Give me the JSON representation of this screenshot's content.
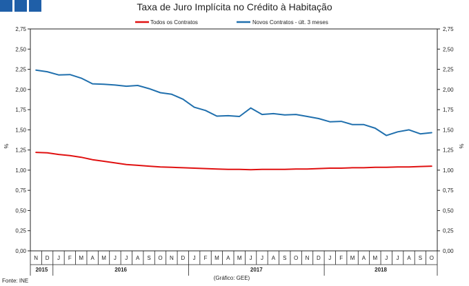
{
  "chart_data": {
    "type": "line",
    "title": "Taxa de Juro Implícita no Crédito à Habitação",
    "ylabel_left": "%",
    "ylabel_right": "%",
    "ylim": [
      0,
      2.75
    ],
    "yticks": [
      "0,00",
      "0,25",
      "0,50",
      "0,75",
      "1,00",
      "1,25",
      "1,50",
      "1,75",
      "2,00",
      "2,25",
      "2,50",
      "2,75"
    ],
    "categories": [
      "N",
      "D",
      "J",
      "F",
      "M",
      "A",
      "M",
      "J",
      "J",
      "A",
      "S",
      "O",
      "N",
      "D",
      "J",
      "F",
      "M",
      "A",
      "M",
      "J",
      "J",
      "A",
      "S",
      "O",
      "N",
      "D",
      "J",
      "F",
      "M",
      "A",
      "M",
      "J",
      "J",
      "A",
      "S",
      "O"
    ],
    "years": [
      {
        "label": "2015",
        "start": 0,
        "end": 1
      },
      {
        "label": "2016",
        "start": 2,
        "end": 13
      },
      {
        "label": "2017",
        "start": 14,
        "end": 25
      },
      {
        "label": "2018",
        "start": 26,
        "end": 35
      }
    ],
    "series": [
      {
        "name": "Todos os Contratos",
        "color": "#e01010",
        "values": [
          1.22,
          1.215,
          1.195,
          1.18,
          1.16,
          1.13,
          1.11,
          1.09,
          1.07,
          1.06,
          1.05,
          1.04,
          1.035,
          1.03,
          1.025,
          1.02,
          1.015,
          1.01,
          1.01,
          1.005,
          1.01,
          1.01,
          1.01,
          1.015,
          1.015,
          1.02,
          1.025,
          1.025,
          1.03,
          1.03,
          1.035,
          1.035,
          1.04,
          1.04,
          1.045,
          1.05
        ]
      },
      {
        "name": "Novos Contratos - últ. 3 meses",
        "color": "#1f6fad",
        "values": [
          2.24,
          2.22,
          2.18,
          2.185,
          2.14,
          2.07,
          2.065,
          2.055,
          2.04,
          2.05,
          2.01,
          1.96,
          1.94,
          1.88,
          1.78,
          1.74,
          1.67,
          1.675,
          1.665,
          1.77,
          1.69,
          1.7,
          1.685,
          1.69,
          1.665,
          1.64,
          1.6,
          1.605,
          1.565,
          1.565,
          1.52,
          1.43,
          1.475,
          1.5,
          1.45,
          1.465
        ]
      }
    ]
  },
  "footer": {
    "source": "Fonte: INE",
    "credit": "(Gráfico: GEE)"
  },
  "header_squares_color": "#1f5fa8"
}
